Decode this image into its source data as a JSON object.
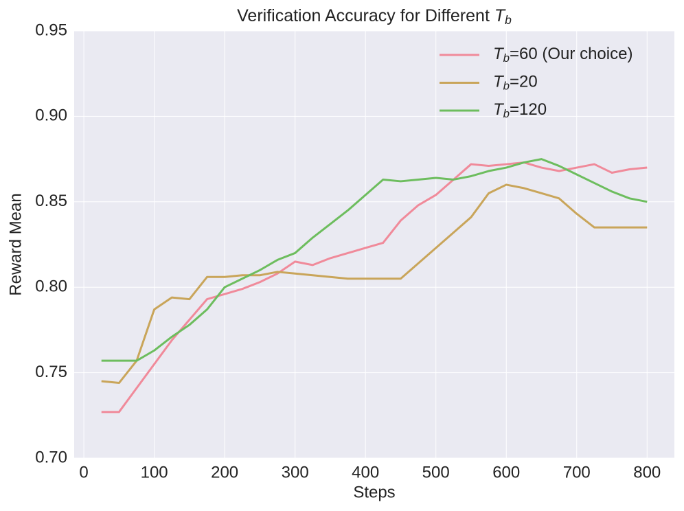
{
  "chart_data": {
    "type": "line",
    "title": "Verification Accuracy for Different Tb",
    "x_label": "Steps",
    "y_label": "Reward Mean",
    "x": [
      25,
      50,
      75,
      100,
      125,
      150,
      175,
      200,
      225,
      250,
      275,
      300,
      325,
      350,
      375,
      400,
      425,
      450,
      475,
      500,
      525,
      550,
      575,
      600,
      625,
      650,
      675,
      700,
      725,
      750,
      775,
      800
    ],
    "series": [
      {
        "name": "Tb=60 (Our choice)",
        "color": "#f08a9a",
        "values": [
          0.727,
          0.727,
          0.741,
          0.755,
          0.769,
          0.781,
          0.793,
          0.796,
          0.799,
          0.803,
          0.808,
          0.815,
          0.813,
          0.817,
          0.82,
          0.823,
          0.826,
          0.839,
          0.848,
          0.854,
          0.863,
          0.872,
          0.871,
          0.872,
          0.873,
          0.87,
          0.868,
          0.87,
          0.872,
          0.867,
          0.869,
          0.87
        ]
      },
      {
        "name": "Tb=20",
        "color": "#c9a55a",
        "values": [
          0.745,
          0.744,
          0.757,
          0.787,
          0.794,
          0.793,
          0.806,
          0.806,
          0.807,
          0.807,
          0.809,
          0.808,
          0.807,
          0.806,
          0.805,
          0.805,
          0.805,
          0.805,
          0.814,
          0.823,
          0.832,
          0.841,
          0.855,
          0.86,
          0.858,
          0.855,
          0.852,
          0.843,
          0.835,
          0.835,
          0.835,
          0.835
        ]
      },
      {
        "name": "Tb=120",
        "color": "#6dbd5e",
        "values": [
          0.757,
          0.757,
          0.757,
          0.763,
          0.771,
          0.778,
          0.787,
          0.8,
          0.805,
          0.81,
          0.816,
          0.82,
          0.829,
          0.837,
          0.845,
          0.854,
          0.863,
          0.862,
          0.863,
          0.864,
          0.863,
          0.865,
          0.868,
          0.87,
          0.873,
          0.875,
          0.871,
          0.866,
          0.861,
          0.856,
          0.852,
          0.85
        ]
      }
    ],
    "xlim": [
      -13.75,
      838.75
    ],
    "ylim": [
      0.7,
      0.95
    ],
    "xticks": [
      0,
      100,
      200,
      300,
      400,
      500,
      600,
      700,
      800
    ],
    "yticks": [
      {
        "value": 0.7,
        "label": "0.70"
      },
      {
        "value": 0.75,
        "label": "0.75"
      },
      {
        "value": 0.8,
        "label": "0.80"
      },
      {
        "value": 0.85,
        "label": "0.85"
      },
      {
        "value": 0.9,
        "label": "0.90"
      },
      {
        "value": 0.95,
        "label": "0.95"
      }
    ],
    "grid": true,
    "legend": "upper-right"
  }
}
